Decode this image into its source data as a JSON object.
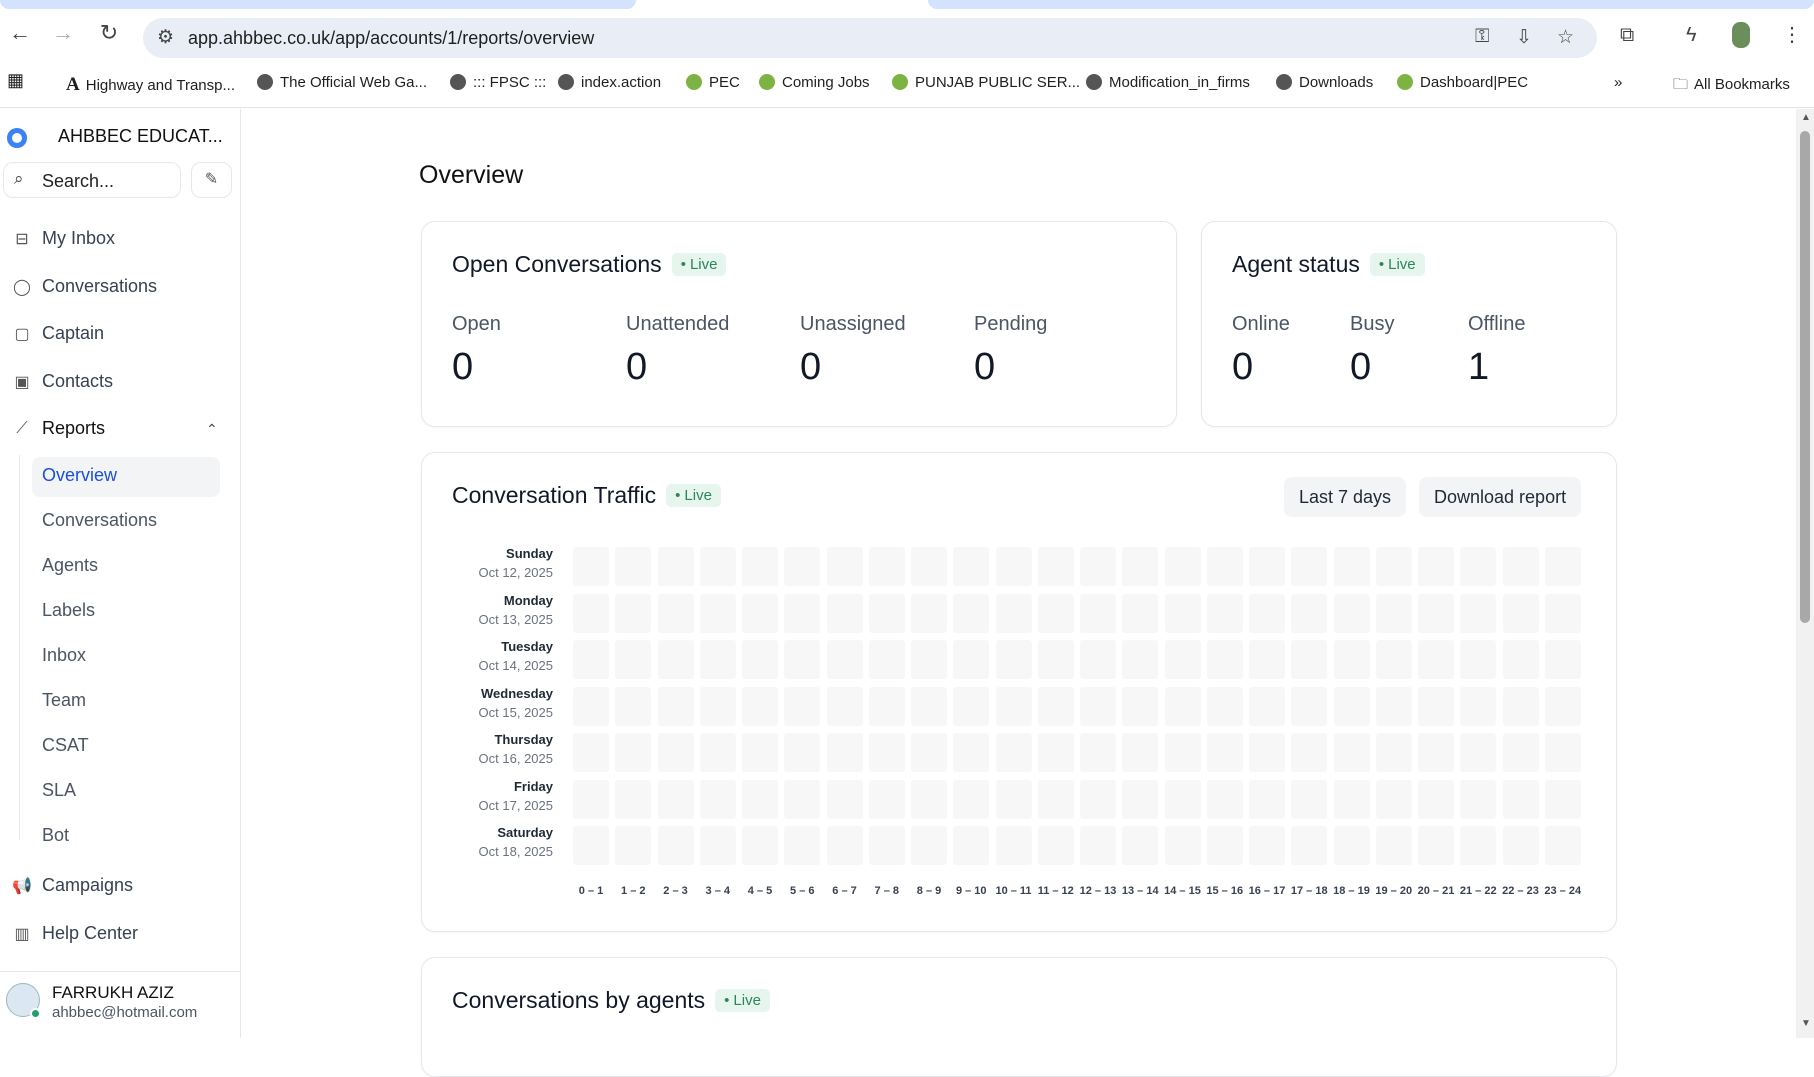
{
  "browser": {
    "url": "app.ahbbec.co.uk/app/accounts/1/reports/overview",
    "bookmarks": [
      "Highway and Transp...",
      "The Official Web Ga...",
      "::: FPSC :::",
      "index.action",
      "PEC",
      "Coming Jobs",
      "PUNJAB PUBLIC SER...",
      "Modification_in_firms",
      "Downloads",
      "Dashboard|PEC"
    ],
    "all_bookmarks": "All Bookmarks",
    "more": "»"
  },
  "sidebar": {
    "account": "AHBBEC EDUCAT...",
    "search_placeholder": "Search...",
    "items": [
      {
        "label": "My Inbox",
        "icon": "inbox-icon"
      },
      {
        "label": "Conversations",
        "icon": "chat-icon"
      },
      {
        "label": "Captain",
        "icon": "captain-icon"
      },
      {
        "label": "Contacts",
        "icon": "contacts-icon"
      },
      {
        "label": "Reports",
        "icon": "chart-icon"
      }
    ],
    "reports_sub": [
      "Overview",
      "Conversations",
      "Agents",
      "Labels",
      "Inbox",
      "Team",
      "CSAT",
      "SLA",
      "Bot"
    ],
    "bottom_items": [
      {
        "label": "Campaigns",
        "icon": "megaphone-icon"
      },
      {
        "label": "Help Center",
        "icon": "library-icon"
      }
    ],
    "user": {
      "name": "FARRUKH AZIZ",
      "email": "ahbbec@hotmail.com"
    }
  },
  "main": {
    "title": "Overview",
    "live": "Live",
    "open_conversations": {
      "title": "Open Conversations",
      "metrics": [
        {
          "label": "Open",
          "value": "0"
        },
        {
          "label": "Unattended",
          "value": "0"
        },
        {
          "label": "Unassigned",
          "value": "0"
        },
        {
          "label": "Pending",
          "value": "0"
        }
      ]
    },
    "agent_status": {
      "title": "Agent status",
      "metrics": [
        {
          "label": "Online",
          "value": "0"
        },
        {
          "label": "Busy",
          "value": "0"
        },
        {
          "label": "Offline",
          "value": "1"
        }
      ]
    },
    "traffic": {
      "title": "Conversation Traffic",
      "range": "Last 7 days",
      "download": "Download report"
    },
    "agents": {
      "title": "Conversations by agents"
    }
  },
  "chart_data": {
    "type": "heatmap",
    "rows": [
      {
        "day": "Sunday",
        "date": "Oct 12, 2025"
      },
      {
        "day": "Monday",
        "date": "Oct 13, 2025"
      },
      {
        "day": "Tuesday",
        "date": "Oct 14, 2025"
      },
      {
        "day": "Wednesday",
        "date": "Oct 15, 2025"
      },
      {
        "day": "Thursday",
        "date": "Oct 16, 2025"
      },
      {
        "day": "Friday",
        "date": "Oct 17, 2025"
      },
      {
        "day": "Saturday",
        "date": "Oct 18, 2025"
      }
    ],
    "columns": [
      "0 – 1",
      "1 – 2",
      "2 – 3",
      "3 – 4",
      "4 – 5",
      "5 – 6",
      "6 – 7",
      "7 – 8",
      "8 – 9",
      "9 – 10",
      "10 – 11",
      "11 – 12",
      "12 – 13",
      "13 – 14",
      "14 – 15",
      "15 – 16",
      "16 – 17",
      "17 – 18",
      "18 – 19",
      "19 – 20",
      "20 – 21",
      "21 – 22",
      "22 – 23",
      "23 – 24"
    ],
    "values": "all 0",
    "empty_color": "#f7f7f8"
  }
}
